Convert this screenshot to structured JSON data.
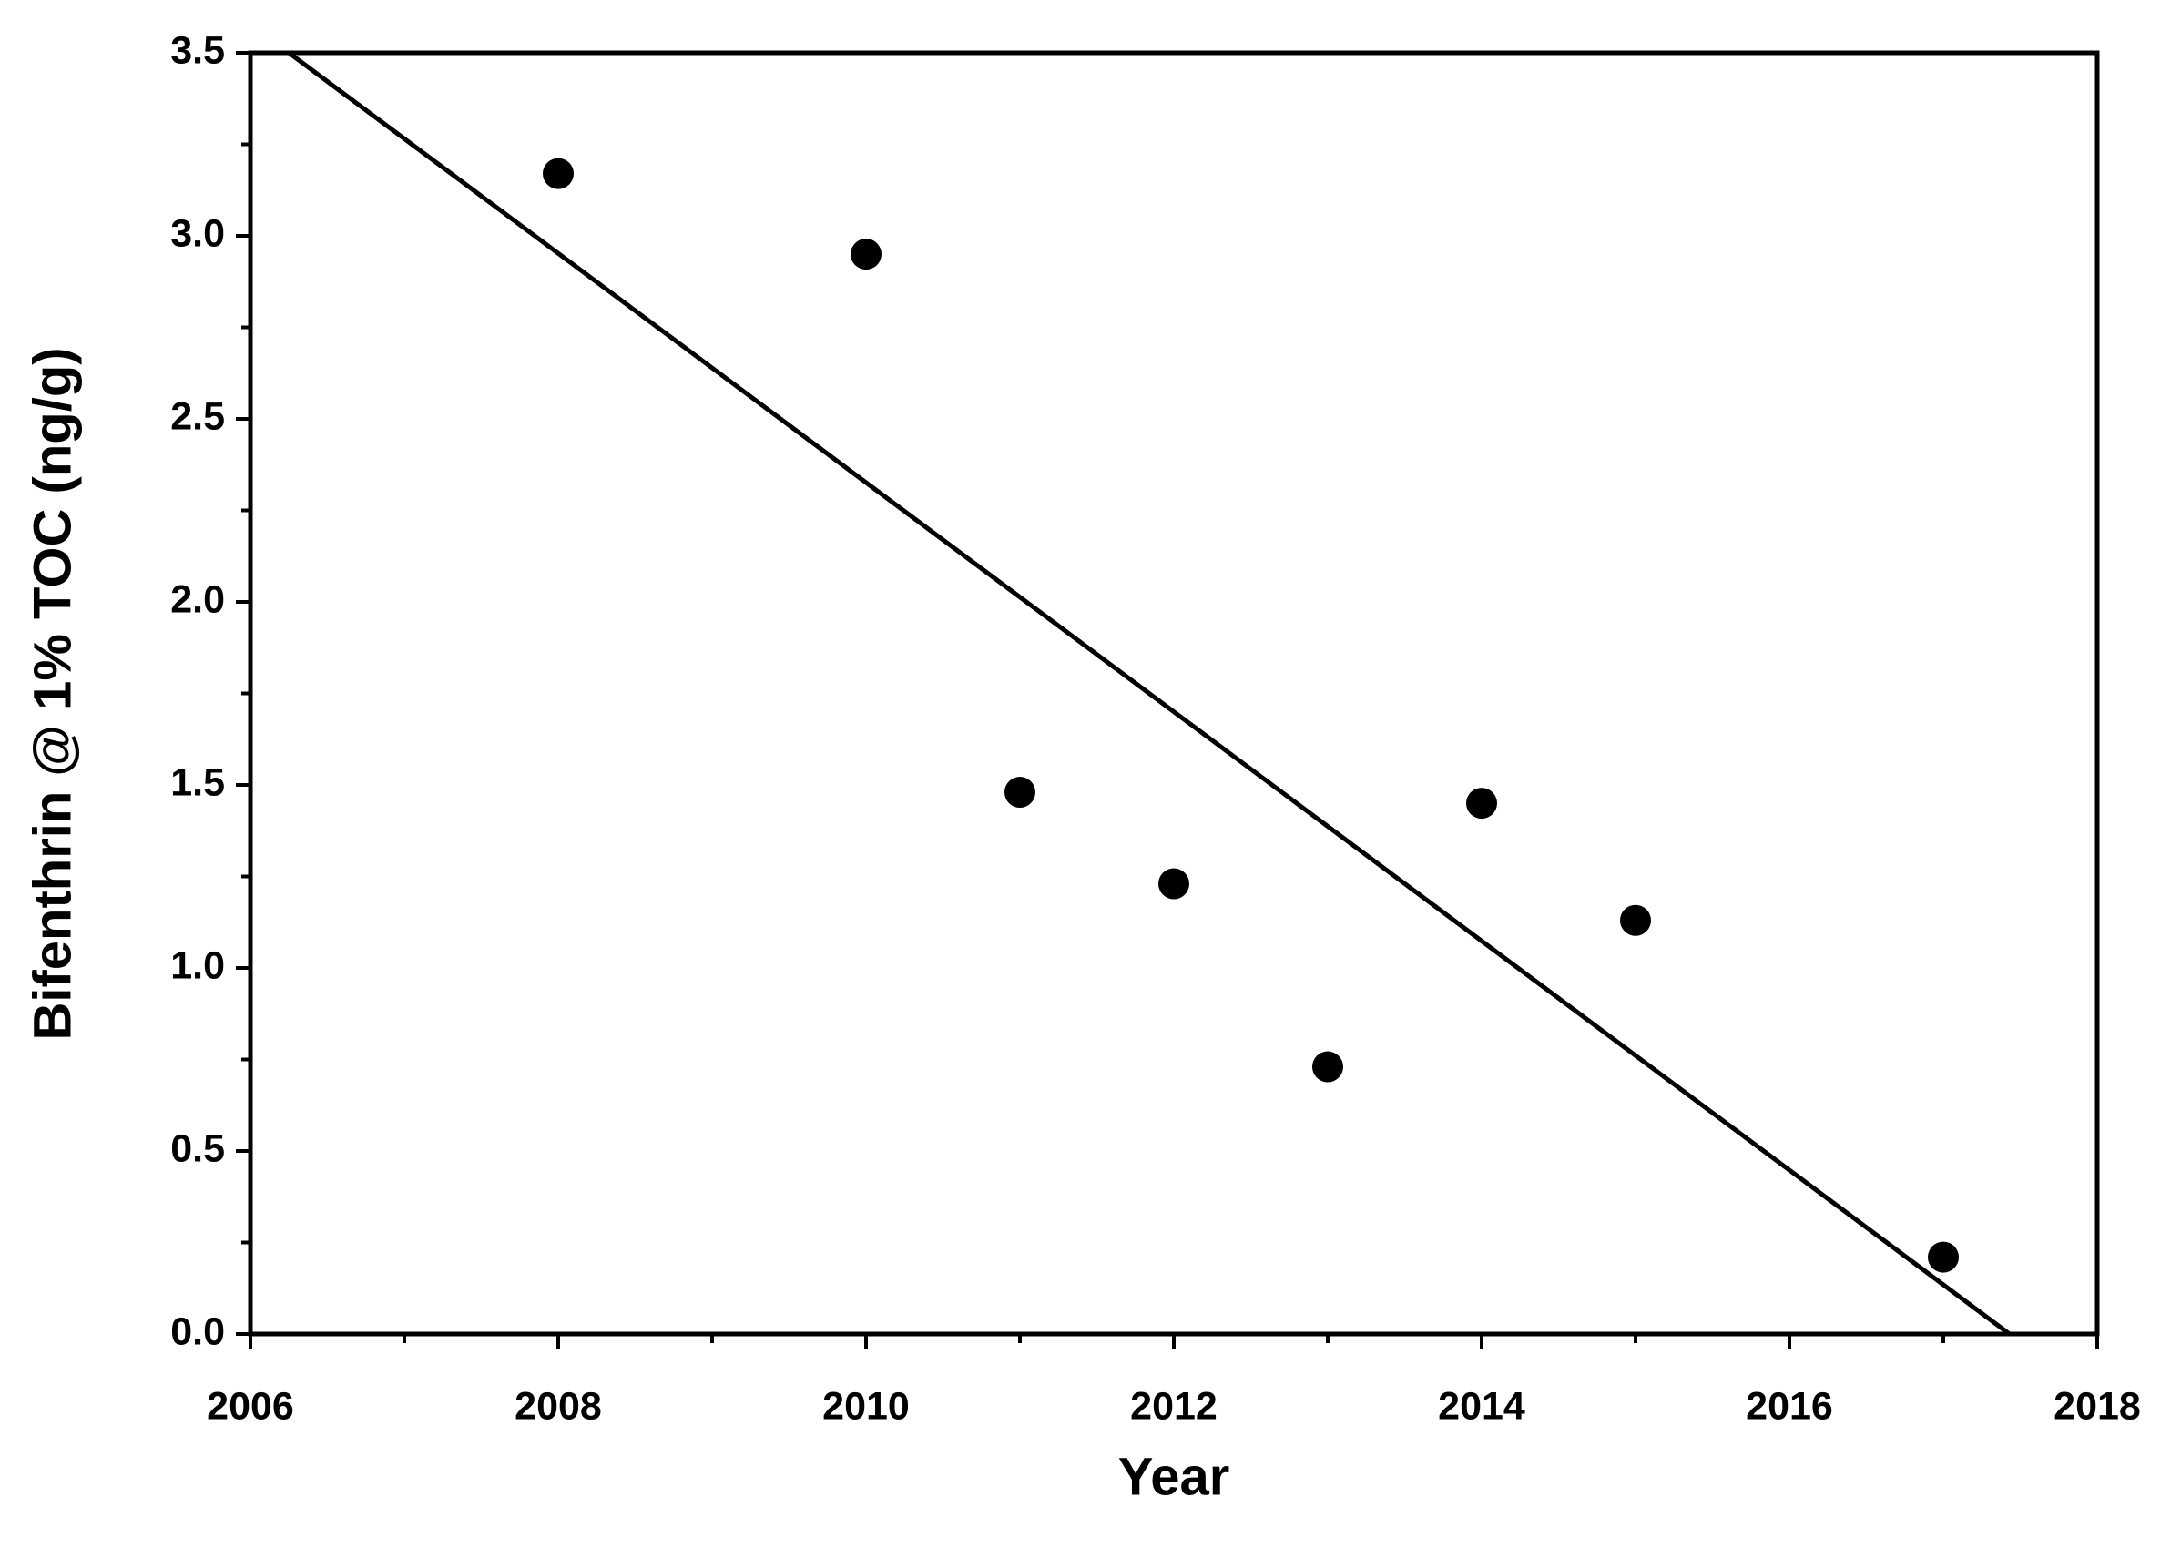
{
  "chart_data": {
    "type": "scatter",
    "xlabel": "Year",
    "ylabel": "Bifenthrin @ 1% TOC (ng/g)",
    "xlim": [
      2006,
      2018
    ],
    "xticks": [
      2006,
      2008,
      2010,
      2012,
      2014,
      2016,
      2018
    ],
    "xminorticks": [
      2007,
      2009,
      2011,
      2013,
      2015,
      2017
    ],
    "ylim": [
      0,
      3.5
    ],
    "yticks": [
      {
        "value": 0,
        "label": "0.0"
      },
      {
        "value": 0.5,
        "label": "0.5"
      },
      {
        "value": 1,
        "label": "1.0"
      },
      {
        "value": 1.5,
        "label": "1.5"
      },
      {
        "value": 2,
        "label": "2.0"
      },
      {
        "value": 2.5,
        "label": "2.5"
      },
      {
        "value": 3,
        "label": "3.0"
      },
      {
        "value": 3.5,
        "label": "3.5"
      }
    ],
    "yminorticks": [
      0.25,
      0.75,
      1.25,
      1.75,
      2.25,
      2.75,
      3.25
    ],
    "series": [
      {
        "mode": "markers",
        "color": "#000000",
        "x": [
          2008,
          2010,
          2011,
          2012,
          2013,
          2014,
          2015,
          2017
        ],
        "values": [
          3.17,
          2.95,
          1.48,
          1.23,
          0.73,
          1.45,
          1.13,
          0.21
        ]
      },
      {
        "mode": "line",
        "color": "#000000",
        "x": [
          2006.25,
          2017.43
        ],
        "values": [
          3.5,
          0
        ]
      }
    ]
  }
}
